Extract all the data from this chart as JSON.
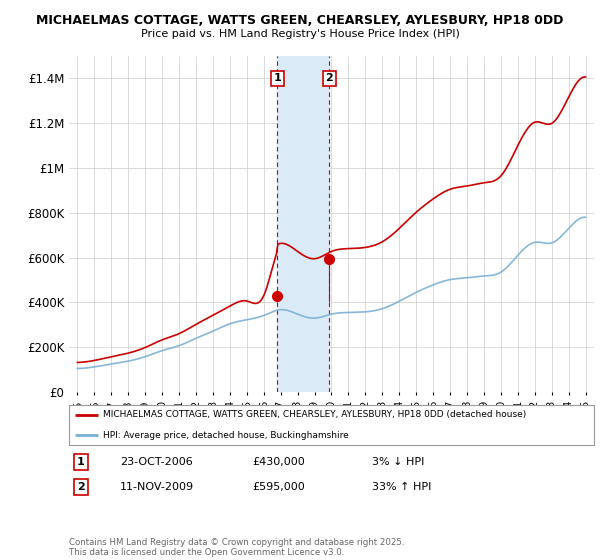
{
  "title_line1": "MICHAELMAS COTTAGE, WATTS GREEN, CHEARSLEY, AYLESBURY, HP18 0DD",
  "title_line2": "Price paid vs. HM Land Registry's House Price Index (HPI)",
  "ylabel_ticks": [
    "£0",
    "£200K",
    "£400K",
    "£600K",
    "£800K",
    "£1M",
    "£1.2M",
    "£1.4M"
  ],
  "ylabel_values": [
    0,
    200000,
    400000,
    600000,
    800000,
    1000000,
    1200000,
    1400000
  ],
  "ylim": [
    0,
    1500000
  ],
  "xlim_start": 1994.5,
  "xlim_end": 2025.5,
  "sale1_x": 2006.81,
  "sale1_y": 430000,
  "sale1_label": "1",
  "sale2_x": 2009.87,
  "sale2_y": 595000,
  "sale2_label": "2",
  "sale1_date": "23-OCT-2006",
  "sale1_price": "£430,000",
  "sale1_hpi": "3% ↓ HPI",
  "sale2_date": "11-NOV-2009",
  "sale2_price": "£595,000",
  "sale2_hpi": "33% ↑ HPI",
  "legend_line1": "MICHAELMAS COTTAGE, WATTS GREEN, CHEARSLEY, AYLESBURY, HP18 0DD (detached house)",
  "legend_line2": "HPI: Average price, detached house, Buckinghamshire",
  "footer": "Contains HM Land Registry data © Crown copyright and database right 2025.\nThis data is licensed under the Open Government Licence v3.0.",
  "hpi_color": "#7ab0d4",
  "sale_color": "#cc0000",
  "shading_color": "#daeaf7",
  "grid_color": "#cccccc",
  "background_color": "#ffffff"
}
